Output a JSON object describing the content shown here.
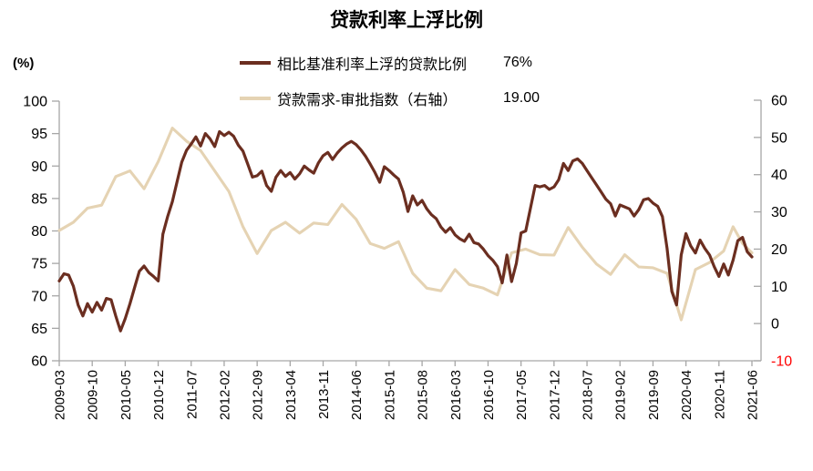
{
  "title": "贷款利率上浮比例",
  "left_axis_unit_label": "(%)",
  "legend": {
    "items": [
      {
        "label": "相比基准利率上浮的贷款比例",
        "value": "76%",
        "color": "#6B2E20"
      },
      {
        "label": "贷款需求-审批指数（右轴）",
        "value": "19.00",
        "color": "#E5D3B3"
      }
    ]
  },
  "colors": {
    "background": "#FFFFFF",
    "axis_line": "#A6A6A6",
    "tick_label": "#000000",
    "negative_tick_label": "#FF0000",
    "series_dark": "#6B2E20",
    "series_tan": "#E5D3B3"
  },
  "chart_data": {
    "type": "line",
    "title": "贷款利率上浮比例",
    "x_description": "months since 2009-03; x tick labels every 7 months",
    "x_tick_months": [
      0,
      7,
      14,
      21,
      28,
      35,
      42,
      49,
      56,
      63,
      70,
      77,
      84,
      91,
      98,
      105,
      112,
      119,
      126,
      133,
      140,
      147
    ],
    "x_tick_labels": [
      "2009-03",
      "2009-10",
      "2010-05",
      "2010-12",
      "2011-07",
      "2012-02",
      "2012-09",
      "2013-04",
      "2013-11",
      "2014-06",
      "2015-01",
      "2015-08",
      "2016-03",
      "2016-10",
      "2017-05",
      "2017-12",
      "2018-07",
      "2019-02",
      "2019-09",
      "2020-04",
      "2020-11",
      "2021-06"
    ],
    "left_axis": {
      "label": "(%)",
      "min": 60,
      "max": 100,
      "ticks": [
        100,
        95,
        90,
        85,
        80,
        75,
        70,
        65,
        60
      ]
    },
    "right_axis": {
      "min": -10,
      "max": 60,
      "ticks": [
        60,
        50,
        40,
        30,
        20,
        10,
        0,
        -10
      ]
    },
    "grid": false,
    "legend_position": "top-center",
    "series": [
      {
        "name": "相比基准利率上浮的贷款比例",
        "axis": "left",
        "unit": "%",
        "color": "#6B2E20",
        "last_value_label": "76%",
        "points": [
          [
            0,
            72.3
          ],
          [
            1,
            73.4
          ],
          [
            2,
            73.2
          ],
          [
            3,
            71.5
          ],
          [
            4,
            68.6
          ],
          [
            5,
            66.9
          ],
          [
            6,
            68.8
          ],
          [
            7,
            67.5
          ],
          [
            8,
            69.0
          ],
          [
            9,
            67.8
          ],
          [
            10,
            69.6
          ],
          [
            11,
            69.4
          ],
          [
            12,
            66.9
          ],
          [
            13,
            64.6
          ],
          [
            14,
            66.5
          ],
          [
            15,
            68.8
          ],
          [
            16,
            71.3
          ],
          [
            17,
            73.8
          ],
          [
            18,
            74.6
          ],
          [
            19,
            73.6
          ],
          [
            20,
            73.0
          ],
          [
            21,
            72.3
          ],
          [
            22,
            79.5
          ],
          [
            23,
            82.2
          ],
          [
            24,
            84.5
          ],
          [
            25,
            87.6
          ],
          [
            26,
            90.6
          ],
          [
            27,
            92.4
          ],
          [
            28,
            93.4
          ],
          [
            29,
            94.5
          ],
          [
            30,
            93.1
          ],
          [
            31,
            95.0
          ],
          [
            32,
            94.2
          ],
          [
            33,
            93.0
          ],
          [
            34,
            95.3
          ],
          [
            35,
            94.7
          ],
          [
            36,
            95.2
          ],
          [
            37,
            94.6
          ],
          [
            38,
            93.2
          ],
          [
            39,
            92.3
          ],
          [
            40,
            90.3
          ],
          [
            41,
            88.3
          ],
          [
            42,
            88.5
          ],
          [
            43,
            89.2
          ],
          [
            44,
            87.0
          ],
          [
            45,
            86.1
          ],
          [
            46,
            88.3
          ],
          [
            47,
            89.3
          ],
          [
            48,
            88.4
          ],
          [
            49,
            89.0
          ],
          [
            50,
            88.0
          ],
          [
            51,
            88.8
          ],
          [
            52,
            90.0
          ],
          [
            53,
            89.4
          ],
          [
            54,
            88.9
          ],
          [
            55,
            90.5
          ],
          [
            56,
            91.6
          ],
          [
            57,
            92.1
          ],
          [
            58,
            91.0
          ],
          [
            59,
            92.0
          ],
          [
            60,
            92.8
          ],
          [
            61,
            93.4
          ],
          [
            62,
            93.8
          ],
          [
            63,
            93.3
          ],
          [
            64,
            92.5
          ],
          [
            65,
            91.5
          ],
          [
            66,
            90.3
          ],
          [
            67,
            89.0
          ],
          [
            68,
            87.5
          ],
          [
            69,
            89.9
          ],
          [
            70,
            89.3
          ],
          [
            71,
            88.6
          ],
          [
            72,
            88.0
          ],
          [
            73,
            86.0
          ],
          [
            74,
            83.0
          ],
          [
            75,
            85.4
          ],
          [
            76,
            84.0
          ],
          [
            77,
            84.7
          ],
          [
            78,
            83.4
          ],
          [
            79,
            82.5
          ],
          [
            80,
            81.9
          ],
          [
            81,
            80.6
          ],
          [
            82,
            79.8
          ],
          [
            83,
            80.5
          ],
          [
            84,
            79.4
          ],
          [
            85,
            78.8
          ],
          [
            86,
            78.4
          ],
          [
            87,
            79.5
          ],
          [
            88,
            78.2
          ],
          [
            89,
            78.0
          ],
          [
            90,
            77.2
          ],
          [
            91,
            76.2
          ],
          [
            92,
            75.5
          ],
          [
            93,
            74.5
          ],
          [
            94,
            72.0
          ],
          [
            95,
            76.3
          ],
          [
            96,
            72.2
          ],
          [
            97,
            75.0
          ],
          [
            98,
            79.7
          ],
          [
            99,
            80.0
          ],
          [
            100,
            83.5
          ],
          [
            101,
            87.0
          ],
          [
            102,
            86.8
          ],
          [
            103,
            87.0
          ],
          [
            104,
            86.4
          ],
          [
            105,
            86.8
          ],
          [
            106,
            87.9
          ],
          [
            107,
            90.4
          ],
          [
            108,
            89.3
          ],
          [
            109,
            90.8
          ],
          [
            110,
            91.1
          ],
          [
            111,
            90.4
          ],
          [
            112,
            89.3
          ],
          [
            113,
            88.2
          ],
          [
            114,
            87.1
          ],
          [
            115,
            86.0
          ],
          [
            116,
            84.9
          ],
          [
            117,
            84.2
          ],
          [
            118,
            82.3
          ],
          [
            119,
            84.0
          ],
          [
            120,
            83.7
          ],
          [
            121,
            83.4
          ],
          [
            122,
            82.3
          ],
          [
            123,
            83.3
          ],
          [
            124,
            84.8
          ],
          [
            125,
            85.0
          ],
          [
            126,
            84.3
          ],
          [
            127,
            83.8
          ],
          [
            128,
            82.2
          ],
          [
            129,
            77.3
          ],
          [
            130,
            70.7
          ],
          [
            131,
            68.6
          ],
          [
            132,
            76.3
          ],
          [
            133,
            79.6
          ],
          [
            134,
            77.7
          ],
          [
            135,
            76.6
          ],
          [
            136,
            78.6
          ],
          [
            137,
            77.3
          ],
          [
            138,
            76.3
          ],
          [
            139,
            74.5
          ],
          [
            140,
            73.0
          ],
          [
            141,
            74.9
          ],
          [
            142,
            73.2
          ],
          [
            143,
            75.5
          ],
          [
            144,
            78.5
          ],
          [
            145,
            79.0
          ],
          [
            146,
            76.8
          ],
          [
            147,
            76.0
          ]
        ]
      },
      {
        "name": "贷款需求-审批指数（右轴）",
        "axis": "right",
        "unit": "index points",
        "color": "#E5D3B3",
        "last_value_label": "19.00",
        "points": [
          [
            0,
            25.0
          ],
          [
            3,
            27.2
          ],
          [
            6,
            31.0
          ],
          [
            9,
            31.8
          ],
          [
            12,
            39.5
          ],
          [
            15,
            41.0
          ],
          [
            18,
            36.2
          ],
          [
            21,
            43.5
          ],
          [
            24,
            52.5
          ],
          [
            27,
            49.0
          ],
          [
            30,
            46.5
          ],
          [
            33,
            41.0
          ],
          [
            36,
            35.5
          ],
          [
            39,
            26.0
          ],
          [
            42,
            18.8
          ],
          [
            45,
            25.0
          ],
          [
            48,
            27.2
          ],
          [
            51,
            24.3
          ],
          [
            54,
            27.0
          ],
          [
            57,
            26.6
          ],
          [
            60,
            32.0
          ],
          [
            63,
            28.0
          ],
          [
            66,
            21.5
          ],
          [
            69,
            20.2
          ],
          [
            72,
            22.0
          ],
          [
            75,
            13.5
          ],
          [
            78,
            9.5
          ],
          [
            81,
            8.8
          ],
          [
            84,
            14.5
          ],
          [
            87,
            10.5
          ],
          [
            90,
            9.5
          ],
          [
            93,
            7.7
          ],
          [
            96,
            19.0
          ],
          [
            99,
            20.0
          ],
          [
            102,
            18.5
          ],
          [
            105,
            18.4
          ],
          [
            108,
            25.8
          ],
          [
            111,
            20.5
          ],
          [
            114,
            16.0
          ],
          [
            117,
            13.2
          ],
          [
            120,
            18.5
          ],
          [
            123,
            15.2
          ],
          [
            126,
            15.0
          ],
          [
            129,
            13.5
          ],
          [
            132,
            1.0
          ],
          [
            135,
            14.5
          ],
          [
            138,
            16.4
          ],
          [
            141,
            19.5
          ],
          [
            143,
            26.0
          ],
          [
            145,
            21.5
          ],
          [
            147,
            19.0
          ]
        ]
      }
    ]
  }
}
